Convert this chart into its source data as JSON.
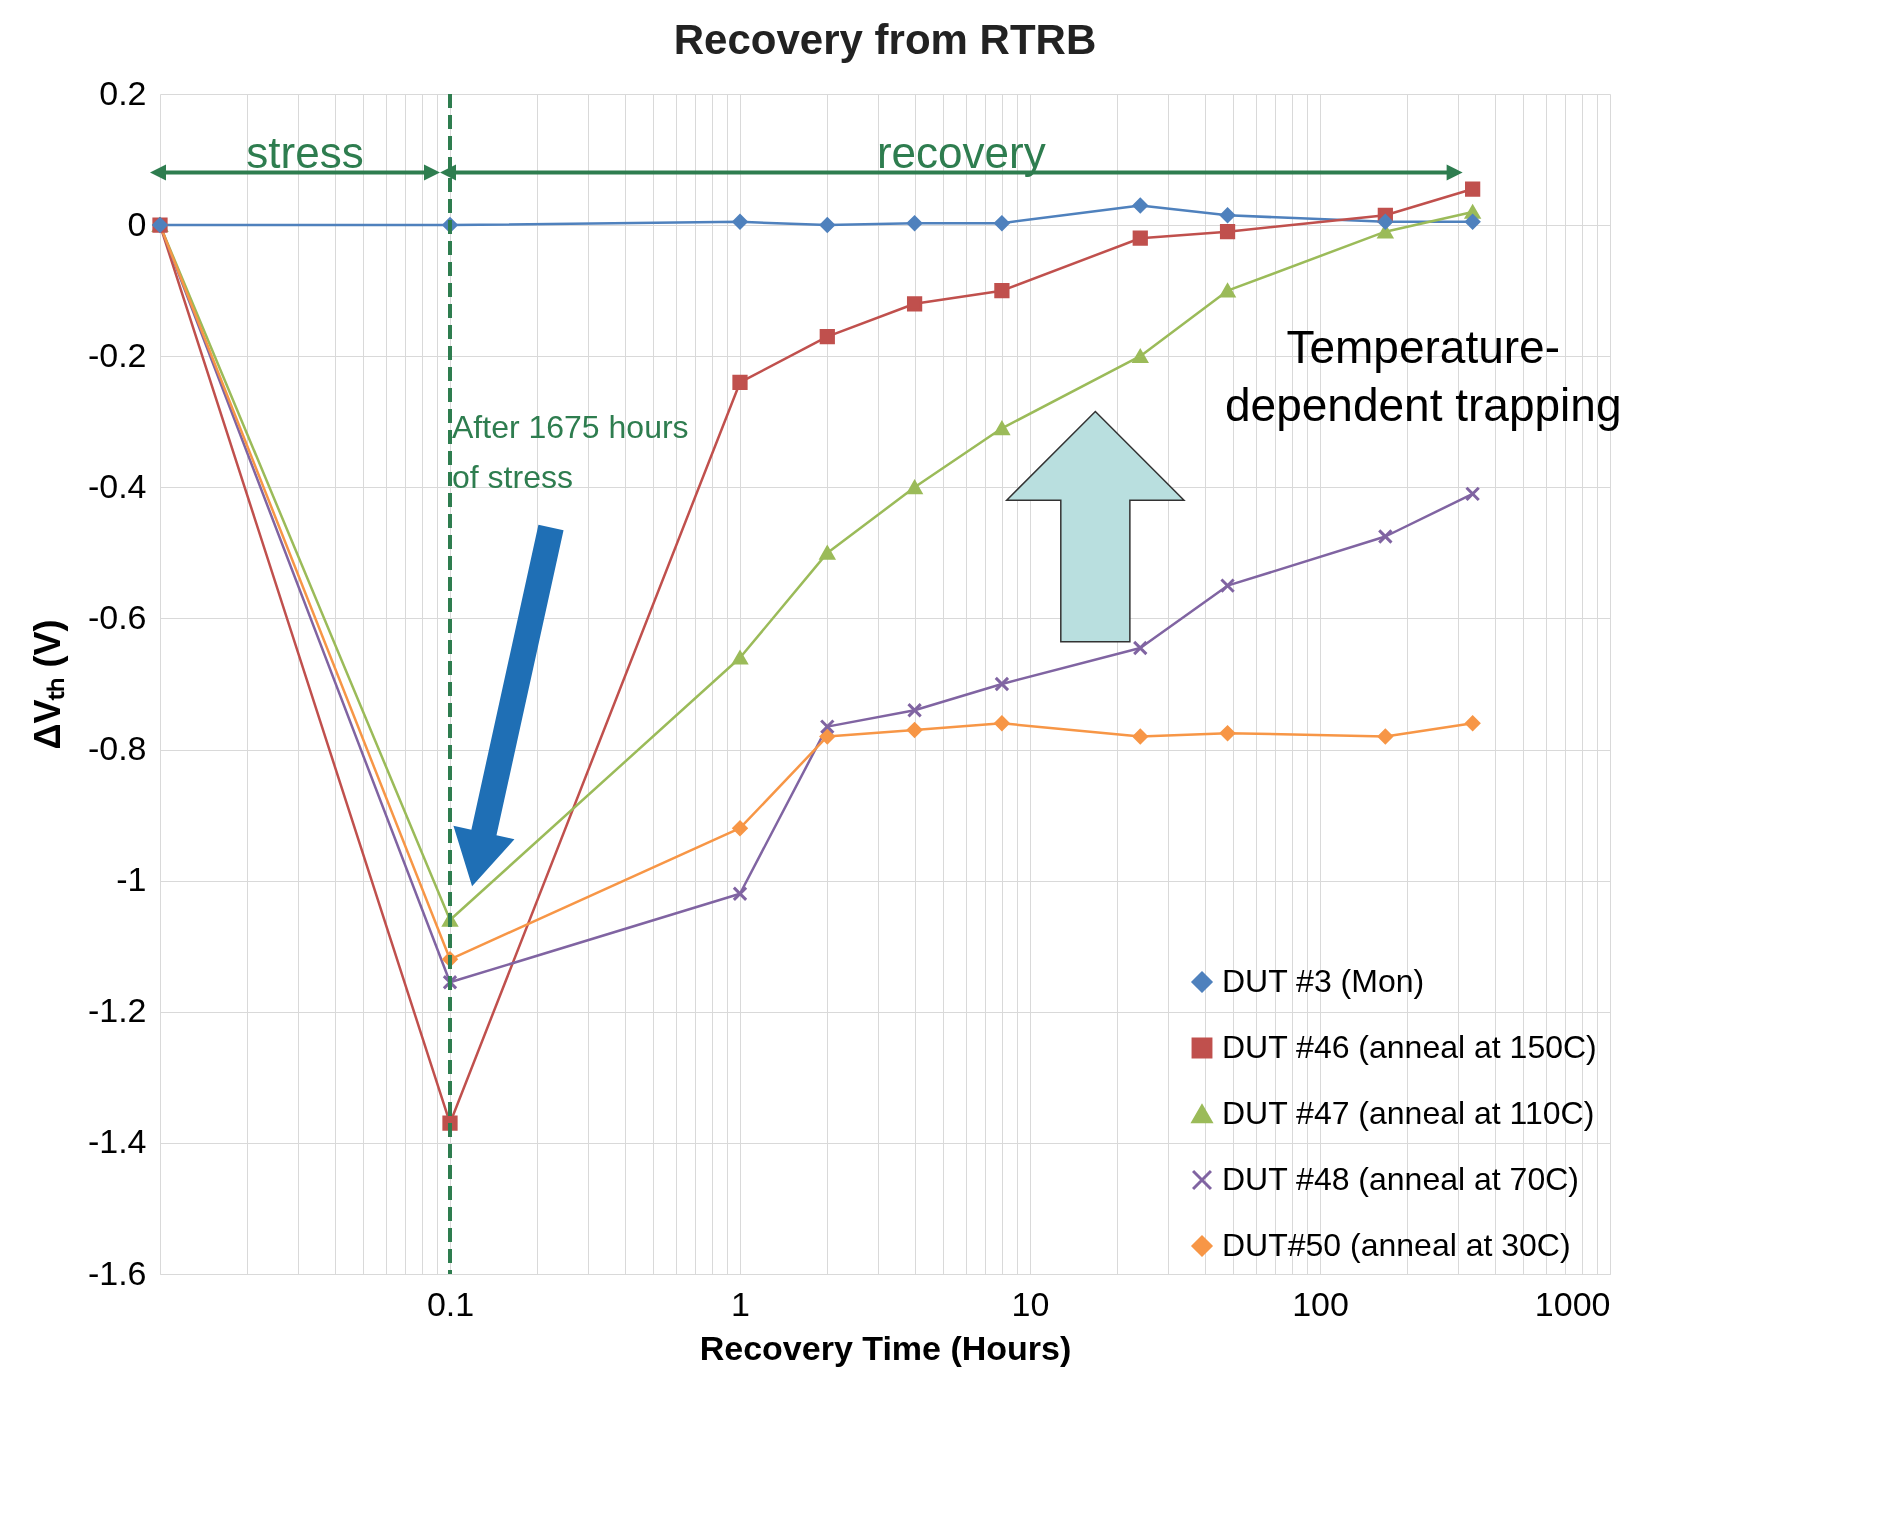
{
  "chart_data": {
    "type": "line",
    "title": "Recovery from RTRB",
    "xlabel": "Recovery  Time (Hours)",
    "ylabel": "ΔVₜₕ (V)",
    "x": [
      0.01,
      0.1,
      1,
      2,
      4,
      8,
      24,
      48,
      168,
      336
    ],
    "series": [
      {
        "name": "DUT #3 (Mon)",
        "color": "#4f81bd",
        "marker": "diamond",
        "values": [
          0,
          0,
          0.005,
          0,
          0.003,
          0.003,
          0.03,
          0.015,
          0.005,
          0.005
        ]
      },
      {
        "name": "DUT #46 (anneal at 150C)",
        "color": "#c0504d",
        "marker": "square",
        "values": [
          0,
          -1.37,
          -0.24,
          -0.17,
          -0.12,
          -0.1,
          -0.02,
          -0.01,
          0.015,
          0.055
        ]
      },
      {
        "name": "DUT #47 (anneal at 110C)",
        "color": "#9bbb59",
        "marker": "triangle",
        "values": [
          0,
          -1.06,
          -0.66,
          -0.5,
          -0.4,
          -0.31,
          -0.2,
          -0.1,
          -0.01,
          0.02
        ]
      },
      {
        "name": "DUT #48 (anneal at 70C)",
        "color": "#8064a2",
        "marker": "cross",
        "values": [
          0,
          -1.155,
          -1.02,
          -0.765,
          -0.74,
          -0.7,
          -0.645,
          -0.55,
          -0.475,
          -0.41
        ]
      },
      {
        "name": "DUT#50 (anneal at 30C)",
        "color": "#f79646",
        "marker": "diamond",
        "values": [
          0,
          -1.12,
          -0.92,
          -0.78,
          -0.77,
          -0.76,
          -0.78,
          -0.775,
          -0.78,
          -0.76
        ]
      }
    ],
    "log": "x",
    "xlim": [
      0.01,
      1000
    ],
    "xticks": [
      0.1,
      1,
      10,
      100,
      1000
    ],
    "ylim": [
      -1.6,
      0.2
    ],
    "yticks": [
      0.2,
      0,
      -0.2,
      -0.4,
      -0.6,
      -0.8,
      -1,
      -1.2,
      -1.4,
      -1.6
    ],
    "grid": true,
    "legend": "bottom right",
    "line_style": "solid",
    "ref_lines": [
      {
        "axis": "x",
        "value": 0.1,
        "label": "After 1675 hours of stress",
        "color": "#2e7d4f",
        "line_style": "dashed"
      }
    ],
    "annotations": [
      "stress",
      "recovery",
      "Temperature-dependent trapping"
    ]
  }
}
